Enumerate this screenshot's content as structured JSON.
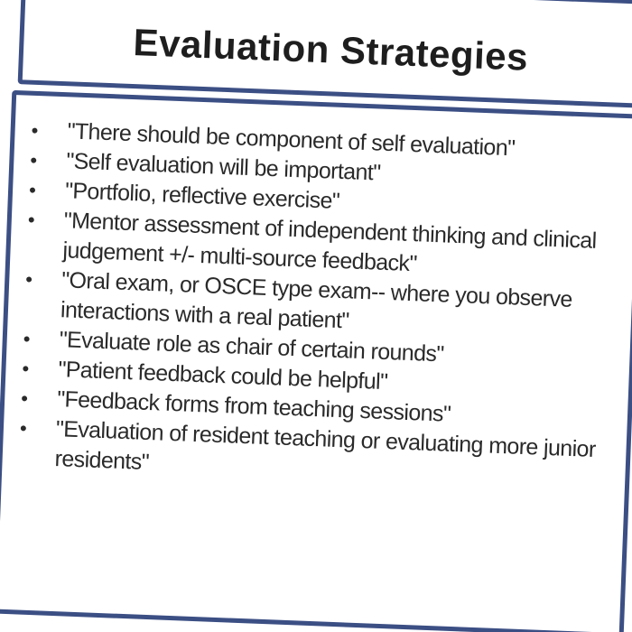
{
  "title": "Evaluation Strategies",
  "bullets": [
    "\"There should be component of self evaluation\"",
    "\"Self evaluation will be important\"",
    "\"Portfolio, reflective exercise\"",
    "\"Mentor assessment of independent thinking and clinical judgement +/- multi-source feedback\"",
    "\"Oral exam, or OSCE type exam-- where you observe interactions with a real patient\"",
    "\"Evaluate role as chair of certain rounds\"",
    "\"Patient feedback could be helpful\"",
    "\"Feedback forms from teaching sessions\"",
    "\"Evaluation of resident teaching or evaluating more junior residents\""
  ],
  "colors": {
    "border": "#3c4f84",
    "text": "#2a2a2a"
  }
}
